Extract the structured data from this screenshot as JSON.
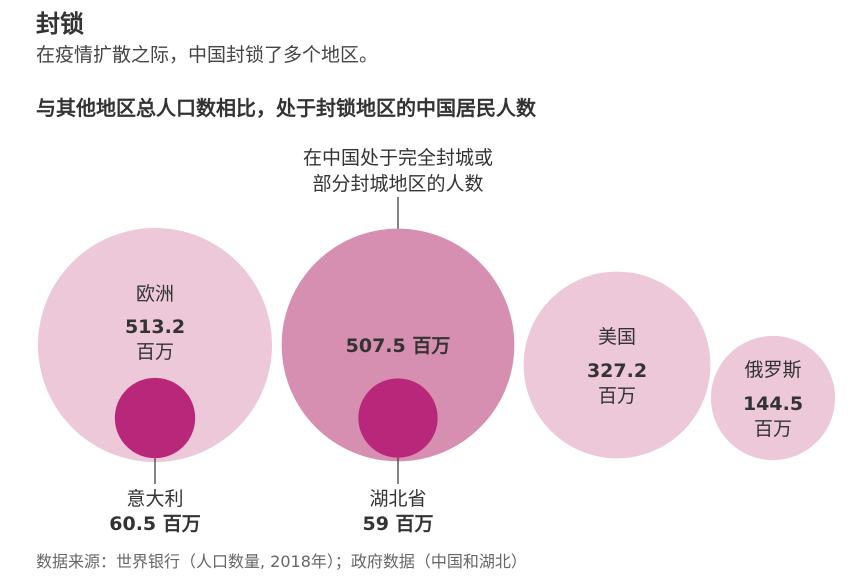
{
  "header": {
    "title": "封锁",
    "subtitle": "在疫情扩散之际，中国封锁了多个地区。",
    "chart_heading": "与其他地区总人口数相比，处于封锁地区的中国居民人数"
  },
  "source": "数据来源：世界银行（人口数量, 2018年）；政府数据（中国和湖北）",
  "colors": {
    "outer_light": "#ecc8d8",
    "outer_china": "#d68fb0",
    "inner": "#b8277a",
    "leader": "#333333"
  },
  "chart_data": {
    "type": "bubble",
    "unit": "百万",
    "china_annotation": [
      "在中国处于完全封城或",
      "部分封城地区的人数"
    ],
    "bubbles": [
      {
        "name": "欧洲",
        "value": 513.2,
        "value_label": "513.2",
        "unit": "百万",
        "inner": {
          "name": "意大利",
          "value": 60.5,
          "value_label": "60.5",
          "unit": "百万"
        }
      },
      {
        "name": "",
        "value": 507.5,
        "value_label": "507.5 百万",
        "unit": "",
        "inner": {
          "name": "湖北省",
          "value": 59,
          "value_label": "59",
          "unit": "百万"
        }
      },
      {
        "name": "美国",
        "value": 327.2,
        "value_label": "327.2",
        "unit": "百万"
      },
      {
        "name": "俄罗斯",
        "value": 144.5,
        "value_label": "144.5",
        "unit": "百万"
      }
    ]
  }
}
